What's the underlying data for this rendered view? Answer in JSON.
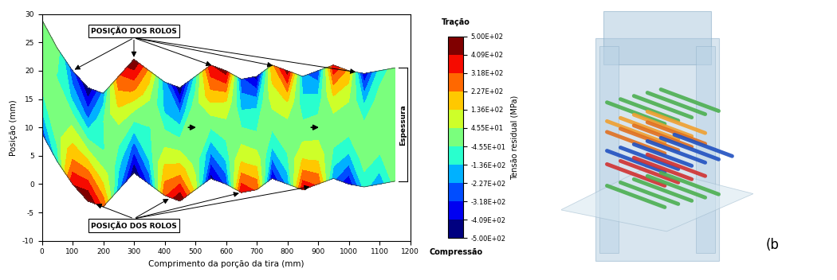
{
  "chart_data": {
    "type": "contour",
    "xlabel": "Comprimento da porção da tira (mm)",
    "ylabel": "Posição (mm)",
    "xlim": [
      0,
      1200
    ],
    "xticks": [
      0,
      100,
      200,
      300,
      400,
      500,
      600,
      700,
      800,
      900,
      1000,
      1100,
      1200
    ],
    "ylim": [
      -10,
      30
    ],
    "yticks": [
      -10,
      -5,
      0,
      5,
      10,
      15,
      20,
      25,
      30
    ],
    "x": [
      0,
      50,
      100,
      150,
      200,
      250,
      300,
      350,
      400,
      450,
      500,
      550,
      600,
      650,
      700,
      750,
      800,
      850,
      900,
      950,
      1000,
      1050,
      1100,
      1150
    ],
    "centerline": [
      19,
      14,
      10,
      7,
      6,
      9,
      12,
      10,
      8,
      7,
      9,
      11,
      10,
      8.5,
      9,
      11,
      10,
      9,
      10,
      11,
      10,
      9.5,
      10,
      10.5
    ],
    "layers": [
      -10,
      -5,
      0,
      5,
      10
    ],
    "cells": [
      [
        -300,
        -100,
        400,
        500,
        300,
        -200,
        -500,
        -300,
        300,
        500,
        100,
        -450,
        -300,
        400,
        300,
        -400,
        -200,
        400,
        300,
        -200,
        -400,
        -100,
        -200,
        0
      ],
      [
        -100,
        0,
        200,
        250,
        100,
        -100,
        -250,
        -100,
        150,
        200,
        0,
        -200,
        -100,
        150,
        100,
        -150,
        -50,
        150,
        100,
        -50,
        -150,
        0,
        -50,
        0
      ],
      [
        0,
        0,
        50,
        0,
        -50,
        0,
        0,
        -50,
        0,
        0,
        -40,
        0,
        0,
        0,
        -40,
        0,
        0,
        0,
        0,
        0,
        0,
        0,
        0,
        0
      ],
      [
        0,
        -50,
        -150,
        -250,
        -50,
        150,
        250,
        50,
        -150,
        -200,
        0,
        200,
        150,
        -150,
        -150,
        100,
        150,
        -100,
        -100,
        150,
        50,
        -150,
        0,
        0
      ],
      [
        0,
        0,
        -300,
        -500,
        -200,
        300,
        500,
        200,
        -200,
        -500,
        -100,
        400,
        450,
        -300,
        -450,
        200,
        450,
        -200,
        -300,
        400,
        200,
        -400,
        -100,
        0
      ]
    ],
    "colorbar": {
      "label": "Tensão residual (MPa)",
      "range": [
        -500,
        500
      ],
      "top_label": "Tração",
      "bottom_label": "Compressão",
      "ticks": [
        {
          "value": 500,
          "label": "5.00E+02"
        },
        {
          "value": 409,
          "label": "4.09E+02"
        },
        {
          "value": 318,
          "label": "3.18E+02"
        },
        {
          "value": 227,
          "label": "2.27E+02"
        },
        {
          "value": 136,
          "label": "1.36E+02"
        },
        {
          "value": 45.5,
          "label": "4.55E+01"
        },
        {
          "value": -45.5,
          "label": "-4.55E+01"
        },
        {
          "value": -136,
          "label": "-1.36E+02"
        },
        {
          "value": -227,
          "label": "-2.27E+02"
        },
        {
          "value": -318,
          "label": "-3.18E+02"
        },
        {
          "value": -409,
          "label": "-4.09E+02"
        },
        {
          "value": -500,
          "label": "-5.00E+02"
        }
      ]
    },
    "annotations": {
      "rolls_label": "POSIÇÃO DOS ROLOS",
      "rolls_top": [
        100,
        300,
        560,
        760,
        1030
      ],
      "rolls_bottom": [
        170,
        420,
        650,
        880
      ],
      "thickness_label": "Espessura"
    },
    "panel_label": "(b"
  }
}
